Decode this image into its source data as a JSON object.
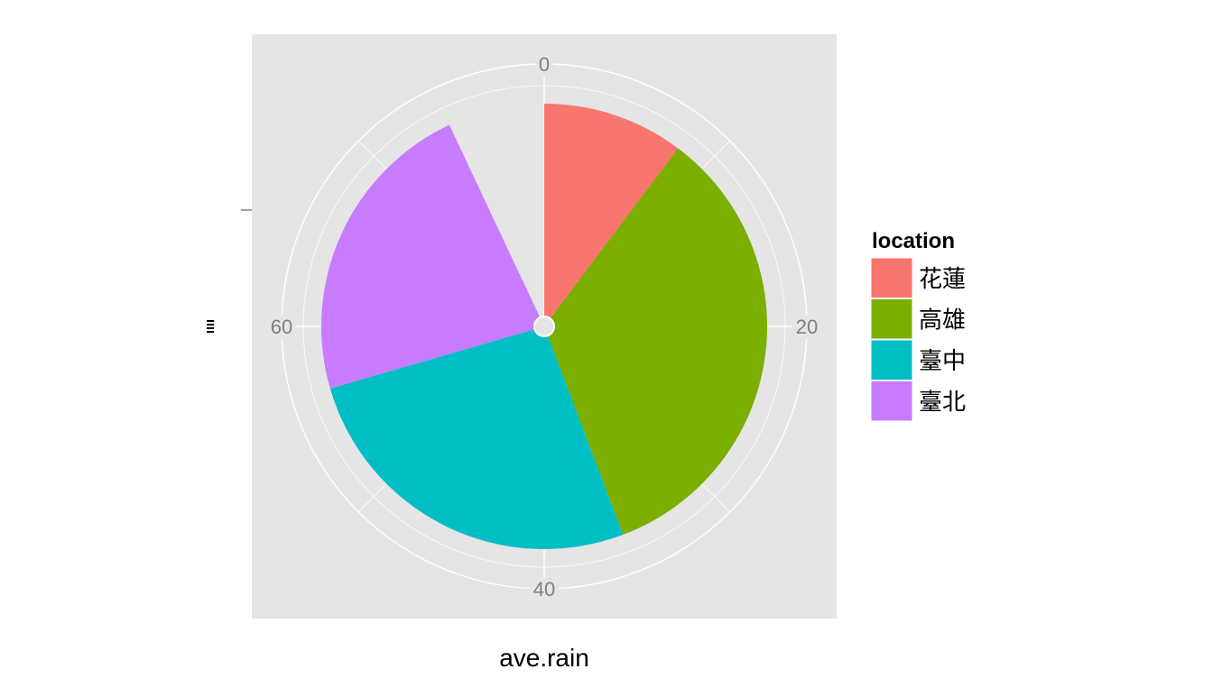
{
  "chart_data": {
    "type": "pie",
    "title": "",
    "xlabel": "ave.rain",
    "ylabel": "",
    "y_tick_label": "",
    "theta_axis": {
      "range": [
        0,
        80
      ],
      "ticks": [
        0,
        20,
        40,
        60
      ],
      "tick_labels": [
        "0",
        "20",
        "40",
        "60"
      ]
    },
    "grid": true,
    "legend": {
      "title": "location",
      "position": "right",
      "entries": [
        "花蓮",
        "高雄",
        "臺中",
        "臺北"
      ]
    },
    "slices": [
      {
        "label": "花蓮",
        "value": 8.2,
        "color": "#F8766D"
      },
      {
        "label": "高雄",
        "value": 27.2,
        "color": "#7CAE00"
      },
      {
        "label": "臺中",
        "value": 21.0,
        "color": "#00BFC4"
      },
      {
        "label": "臺北",
        "value": 18.0,
        "color": "#C77CFF"
      }
    ]
  },
  "colors": {
    "panel_background": "#E5E5E5",
    "grid_line": "#FFFFFF",
    "tick_text": "#7F7F7F",
    "axis_title": "#000000"
  }
}
